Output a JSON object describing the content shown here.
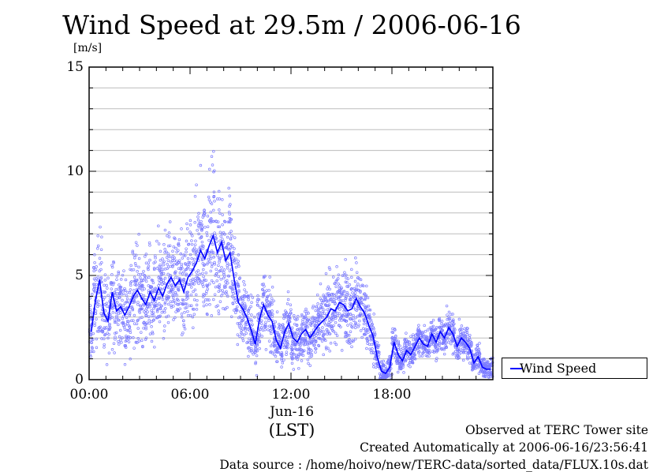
{
  "chart_data": {
    "type": "scatter",
    "title": "Wind Speed at 29.5m / 2006-06-16",
    "ylabel": "[m/s]",
    "xlabel": "(LST)",
    "date_label": "Jun-16",
    "x_tick_labels": [
      "00:00",
      "06:00",
      "12:00",
      "18:00"
    ],
    "x_tick_hours": [
      0,
      6,
      12,
      18
    ],
    "y_tick_labels": [
      "0",
      "5",
      "10",
      "15"
    ],
    "y_tick_values": [
      0,
      5,
      10,
      15
    ],
    "xlim_hours": [
      0,
      24
    ],
    "ylim": [
      0,
      15
    ],
    "grid": true,
    "legend_position": "right",
    "series": [
      {
        "name": "Wind Speed",
        "color": "#0000ff",
        "hour": [
          0.0,
          0.25,
          0.5,
          0.75,
          1.0,
          1.25,
          1.5,
          1.75,
          2.0,
          2.25,
          2.5,
          2.75,
          3.0,
          3.25,
          3.5,
          3.75,
          4.0,
          4.25,
          4.5,
          4.75,
          5.0,
          5.25,
          5.5,
          5.75,
          6.0,
          6.25,
          6.5,
          6.75,
          7.0,
          7.25,
          7.5,
          7.75,
          8.0,
          8.25,
          8.5,
          8.75,
          9.0,
          9.25,
          9.5,
          9.75,
          10.0,
          10.25,
          10.5,
          10.75,
          11.0,
          11.25,
          11.5,
          11.75,
          12.0,
          12.25,
          12.5,
          12.75,
          13.0,
          13.25,
          13.5,
          13.75,
          14.0,
          14.25,
          14.5,
          14.75,
          15.0,
          15.25,
          15.5,
          15.75,
          16.0,
          16.25,
          16.5,
          16.75,
          17.0,
          17.25,
          17.5,
          17.75,
          18.0,
          18.25,
          18.5,
          18.75,
          19.0,
          19.25,
          19.5,
          19.75,
          20.0,
          20.25,
          20.5,
          20.75,
          21.0,
          21.25,
          21.5,
          21.75,
          22.0,
          22.25,
          22.5,
          22.75,
          23.0,
          23.25,
          23.5,
          23.75
        ],
        "mean": [
          2.3,
          3.8,
          4.8,
          3.2,
          2.8,
          4.2,
          3.3,
          3.5,
          3.1,
          3.5,
          4.0,
          4.3,
          3.9,
          3.6,
          4.2,
          3.8,
          4.4,
          4.0,
          4.6,
          4.9,
          4.5,
          4.8,
          4.2,
          4.9,
          5.2,
          5.6,
          6.2,
          5.8,
          6.4,
          6.9,
          6.1,
          6.6,
          5.7,
          6.1,
          4.8,
          3.7,
          3.4,
          3.0,
          2.4,
          1.7,
          2.9,
          3.6,
          3.1,
          2.8,
          1.9,
          1.5,
          2.3,
          2.7,
          2.0,
          1.8,
          2.2,
          2.4,
          2.0,
          2.3,
          2.6,
          2.8,
          3.0,
          3.4,
          3.3,
          3.7,
          3.6,
          3.3,
          3.4,
          3.9,
          3.5,
          3.2,
          2.6,
          2.1,
          1.1,
          0.4,
          0.3,
          0.6,
          1.8,
          1.2,
          0.9,
          1.4,
          1.2,
          1.6,
          2.0,
          1.7,
          1.6,
          2.2,
          1.8,
          2.3,
          2.0,
          2.5,
          2.2,
          1.6,
          2.0,
          1.8,
          1.5,
          0.8,
          1.1,
          0.6,
          0.5,
          0.5
        ],
        "spread": [
          1.4,
          1.9,
          2.1,
          1.7,
          1.5,
          1.9,
          1.7,
          1.7,
          1.6,
          1.8,
          1.9,
          2.0,
          1.9,
          1.8,
          1.9,
          1.8,
          2.0,
          1.9,
          2.0,
          2.1,
          2.0,
          2.1,
          1.9,
          2.1,
          2.3,
          2.5,
          2.8,
          2.6,
          2.9,
          3.1,
          2.8,
          2.9,
          2.5,
          2.5,
          2.1,
          1.8,
          1.6,
          1.4,
          1.2,
          1.0,
          1.3,
          1.5,
          1.3,
          1.2,
          1.0,
          0.9,
          1.1,
          1.2,
          1.0,
          1.0,
          1.1,
          1.1,
          1.0,
          1.1,
          1.2,
          1.3,
          1.4,
          1.5,
          1.5,
          1.6,
          1.6,
          1.5,
          1.5,
          1.6,
          1.5,
          1.4,
          1.2,
          1.0,
          0.7,
          0.5,
          0.5,
          0.6,
          0.7,
          0.6,
          0.5,
          0.6,
          0.6,
          0.6,
          0.7,
          0.6,
          0.6,
          0.7,
          0.6,
          0.7,
          0.6,
          0.7,
          0.7,
          0.6,
          0.6,
          0.6,
          0.5,
          0.4,
          0.5,
          0.4,
          0.4,
          0.4
        ]
      }
    ]
  },
  "footer": {
    "observed": "Observed at TERC Tower site",
    "created": "Created Automatically at 2006-06-16/23:56:41",
    "source": "Data source : /home/hoivo/new/TERC-data/sorted_data/FLUX.10s.dat"
  }
}
